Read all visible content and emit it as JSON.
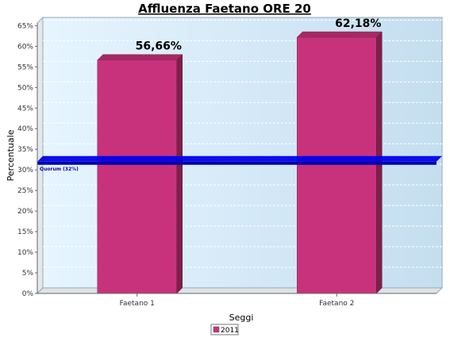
{
  "chart_data": {
    "type": "bar",
    "title": "Affluenza Faetano ORE 20",
    "xlabel": "Seggi",
    "ylabel": "Percentuale",
    "categories": [
      "Faetano 1",
      "Faetano 2"
    ],
    "series": [
      {
        "name": "2011",
        "values": [
          56.66,
          62.18
        ],
        "color": "#c8327d"
      }
    ],
    "data_labels": [
      "56,66%",
      "62,18%"
    ],
    "ylim": [
      0,
      67
    ],
    "yticks": [
      0,
      5,
      10,
      15,
      20,
      25,
      30,
      35,
      40,
      45,
      50,
      55,
      60,
      65
    ],
    "ytick_labels": [
      "0%",
      "5%",
      "10%",
      "15%",
      "20%",
      "25%",
      "30%",
      "35%",
      "40%",
      "45%",
      "50%",
      "55%",
      "60%",
      "65%"
    ],
    "reference_line": {
      "value": 32,
      "label": "Quorum (32%)",
      "color": "#0000ee"
    },
    "grid": true,
    "legend_position": "bottom-center"
  }
}
